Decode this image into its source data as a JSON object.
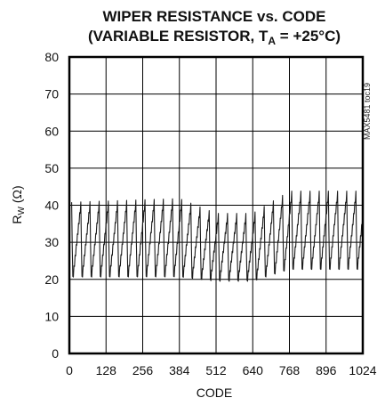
{
  "chart_data": {
    "type": "line",
    "title_line1": "WIPER RESISTANCE vs. CODE",
    "title_line2_prefix": "(VARIABLE RESISTOR, T",
    "title_line2_sub": "A",
    "title_line2_suffix": " = +25°C)",
    "xlabel": "CODE",
    "ylabel_main": "R",
    "ylabel_sub": "W",
    "ylabel_unit": " (Ω)",
    "side_label": "MAX5481 toc19",
    "xlim": [
      0,
      1024
    ],
    "ylim": [
      0,
      80
    ],
    "xticks": [
      0,
      128,
      256,
      384,
      512,
      640,
      768,
      896,
      1024
    ],
    "yticks": [
      0,
      10,
      20,
      30,
      40,
      50,
      60,
      70,
      80
    ],
    "grid": true,
    "series": [
      {
        "color": "#1a1a1a",
        "period": 32,
        "x": [
          8,
          384,
          512,
          640,
          768,
          1024
        ],
        "max": [
          40,
          41,
          37,
          37,
          43,
          43
        ],
        "min": [
          20,
          20,
          19,
          19,
          22,
          22
        ]
      }
    ]
  }
}
